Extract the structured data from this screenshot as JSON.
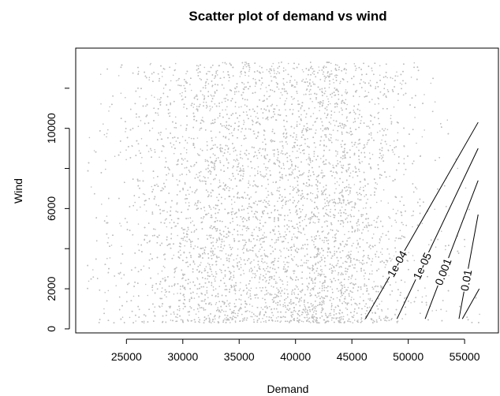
{
  "chart_data": {
    "type": "scatter",
    "title": "Scatter plot of demand vs wind",
    "xlabel": "Demand",
    "ylabel": "Wind",
    "xlim": [
      20500,
      58000
    ],
    "ylim": [
      -200,
      14000
    ],
    "x_ticks": [
      25000,
      30000,
      35000,
      40000,
      45000,
      50000,
      55000
    ],
    "y_ticks": [
      0,
      2000,
      6000,
      10000
    ],
    "point_color": "#bebebe",
    "grid": false,
    "legend": "none",
    "scatter_distribution": {
      "approx_points": 14000,
      "x_range": [
        21500,
        56500
      ],
      "y_range": [
        300,
        13300
      ],
      "density_modes_x": [
        33500,
        43000
      ]
    },
    "contours": [
      {
        "level": "1e-04",
        "label": "1e-04",
        "points": [
          [
            46200,
            500
          ],
          [
            56200,
            10300
          ]
        ]
      },
      {
        "level": "1e-05",
        "label": "1e-05",
        "points": [
          [
            49000,
            500
          ],
          [
            56200,
            9000
          ]
        ]
      },
      {
        "level": "0.001",
        "label": "0.001",
        "points": [
          [
            51500,
            500
          ],
          [
            56200,
            7400
          ]
        ]
      },
      {
        "level": "0.01",
        "label": "0.01",
        "points": [
          [
            54500,
            500
          ],
          [
            56200,
            5700
          ]
        ]
      },
      {
        "level": "",
        "label": "",
        "points": [
          [
            54800,
            500
          ],
          [
            56300,
            2000
          ]
        ]
      }
    ]
  }
}
